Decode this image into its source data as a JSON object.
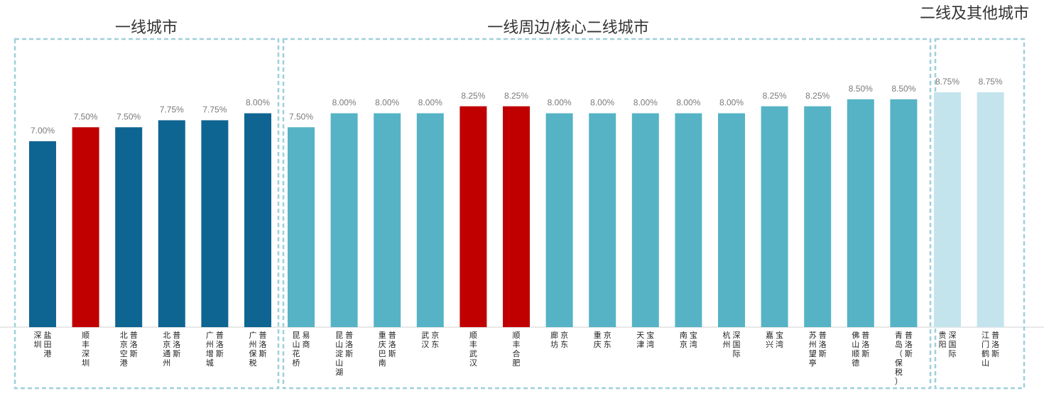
{
  "chart_data": {
    "type": "bar",
    "title": "",
    "ylim": [
      0,
      9.0
    ],
    "value_unit": "%",
    "groups": [
      {
        "title": "一线城市",
        "bars": [
          {
            "label": [
              "盐田港",
              "深圳"
            ],
            "value": 7.0,
            "display": "7.00%",
            "color": "#0f6592"
          },
          {
            "label": [
              "顺丰深圳"
            ],
            "value": 7.5,
            "display": "7.50%",
            "color": "#c00000"
          },
          {
            "label": [
              "普洛斯",
              "北京空港"
            ],
            "value": 7.5,
            "display": "7.50%",
            "color": "#0f6592"
          },
          {
            "label": [
              "普洛斯",
              "北京通州"
            ],
            "value": 7.75,
            "display": "7.75%",
            "color": "#0f6592"
          },
          {
            "label": [
              "普洛斯",
              "广州增城"
            ],
            "value": 7.75,
            "display": "7.75%",
            "color": "#0f6592"
          },
          {
            "label": [
              "普洛斯",
              "广州保税"
            ],
            "value": 8.0,
            "display": "8.00%",
            "color": "#0f6592"
          }
        ]
      },
      {
        "title": "一线周边/核心二线城市",
        "bars": [
          {
            "label": [
              "易商",
              "昆山花桥"
            ],
            "value": 7.5,
            "display": "7.50%",
            "color": "#56b3c6"
          },
          {
            "label": [
              "普洛斯",
              "昆山淀山湖"
            ],
            "value": 8.0,
            "display": "8.00%",
            "color": "#56b3c6"
          },
          {
            "label": [
              "普洛斯",
              "重庆巴南"
            ],
            "value": 8.0,
            "display": "8.00%",
            "color": "#56b3c6"
          },
          {
            "label": [
              "京东",
              "武汉"
            ],
            "value": 8.0,
            "display": "8.00%",
            "color": "#56b3c6"
          },
          {
            "label": [
              "顺丰武汉"
            ],
            "value": 8.25,
            "display": "8.25%",
            "color": "#c00000"
          },
          {
            "label": [
              "顺丰合肥"
            ],
            "value": 8.25,
            "display": "8.25%",
            "color": "#c00000"
          },
          {
            "label": [
              "京东",
              "廊坊"
            ],
            "value": 8.0,
            "display": "8.00%",
            "color": "#56b3c6"
          },
          {
            "label": [
              "京东",
              "重庆"
            ],
            "value": 8.0,
            "display": "8.00%",
            "color": "#56b3c6"
          },
          {
            "label": [
              "宝湾",
              "天津"
            ],
            "value": 8.0,
            "display": "8.00%",
            "color": "#56b3c6"
          },
          {
            "label": [
              "宝湾",
              "南京"
            ],
            "value": 8.0,
            "display": "8.00%",
            "color": "#56b3c6"
          },
          {
            "label": [
              "深国际",
              "杭州"
            ],
            "value": 8.0,
            "display": "8.00%",
            "color": "#56b3c6"
          },
          {
            "label": [
              "宝湾",
              "嘉兴"
            ],
            "value": 8.25,
            "display": "8.25%",
            "color": "#56b3c6"
          },
          {
            "label": [
              "普洛斯",
              "苏州望亭"
            ],
            "value": 8.25,
            "display": "8.25%",
            "color": "#56b3c6"
          },
          {
            "label": [
              "普洛斯",
              "佛山顺德"
            ],
            "value": 8.5,
            "display": "8.50%",
            "color": "#56b3c6"
          },
          {
            "label": [
              "普洛斯",
              "青岛（保税）"
            ],
            "value": 8.5,
            "display": "8.50%",
            "color": "#56b3c6"
          }
        ]
      },
      {
        "title": "二线及其他城市",
        "bars": [
          {
            "label": [
              "深国际",
              "贵阳"
            ],
            "value": 8.75,
            "display": "8.75%",
            "color": "#c3e4ec"
          },
          {
            "label": [
              "普洛斯",
              "江门鹤山"
            ],
            "value": 8.75,
            "display": "8.75%",
            "color": "#c3e4ec"
          }
        ]
      }
    ]
  },
  "colors": {
    "box_border": "#9fd0dc",
    "axis": "#d0d0d0"
  }
}
